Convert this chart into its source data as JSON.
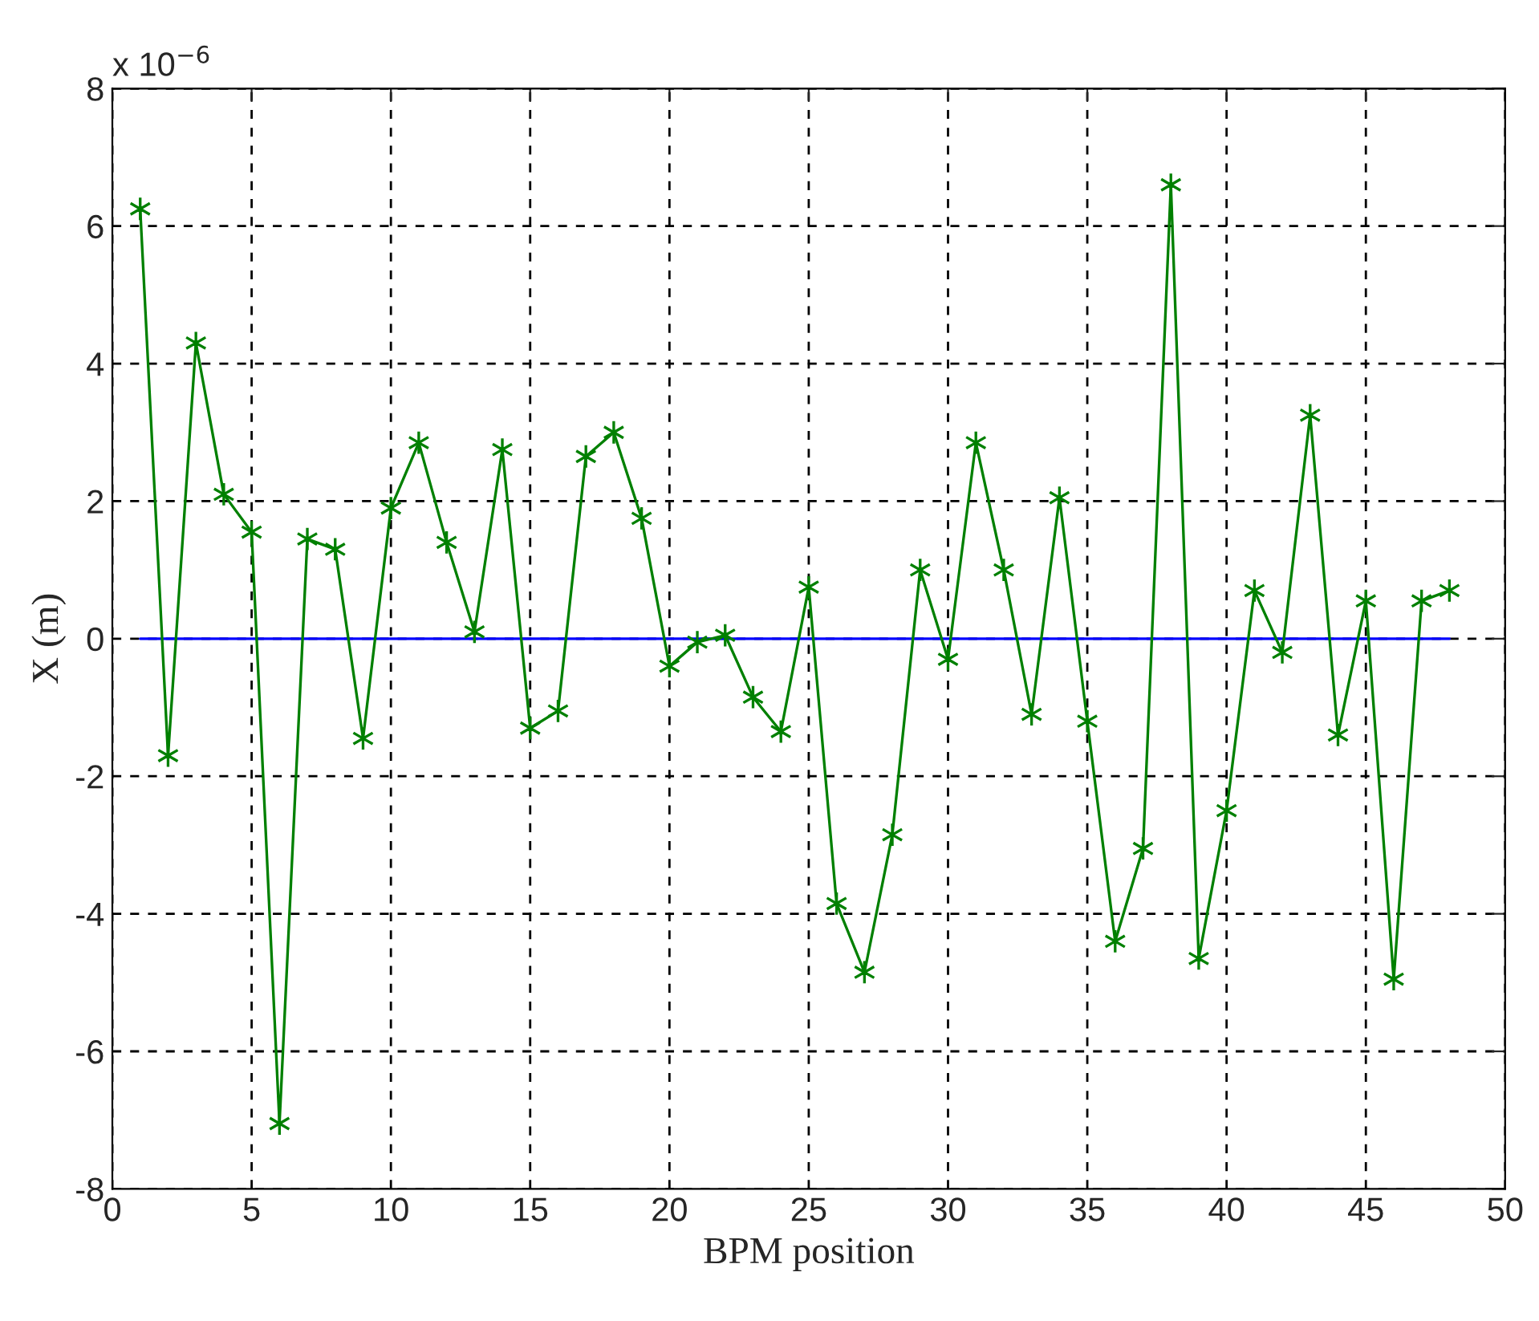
{
  "chart_data": {
    "type": "line",
    "xlabel": "BPM position",
    "ylabel": "X (m)",
    "annotations": [
      "x 10$^{−6}$"
    ],
    "x": [
      1,
      2,
      3,
      4,
      5,
      6,
      7,
      8,
      9,
      10,
      11,
      12,
      13,
      14,
      15,
      16,
      17,
      18,
      19,
      20,
      21,
      22,
      23,
      24,
      25,
      26,
      27,
      28,
      29,
      30,
      31,
      32,
      33,
      34,
      35,
      36,
      37,
      38,
      39,
      40,
      41,
      42,
      43,
      44,
      45,
      46,
      47,
      48
    ],
    "series": [
      {
        "color": "#0000ff",
        "marker": "none",
        "values": [
          0,
          0,
          0,
          0,
          0,
          0,
          0,
          0,
          0,
          0,
          0,
          0,
          0,
          0,
          0,
          0,
          0,
          0,
          0,
          0,
          0,
          0,
          0,
          0,
          0,
          0,
          0,
          0,
          0,
          0,
          0,
          0,
          0,
          0,
          0,
          0,
          0,
          0,
          0,
          0,
          0,
          0,
          0,
          0,
          0,
          0,
          0,
          0
        ]
      },
      {
        "color": "#008000",
        "marker": "cross",
        "values": [
          6.25,
          -1.7,
          4.3,
          2.1,
          1.55,
          -7.05,
          1.45,
          1.3,
          -1.45,
          1.9,
          2.85,
          1.4,
          0.1,
          2.75,
          -1.3,
          -1.05,
          2.65,
          3.0,
          1.75,
          -0.4,
          -0.05,
          0.05,
          -0.85,
          -1.35,
          0.75,
          -3.85,
          -4.85,
          -2.85,
          1.0,
          -0.3,
          2.85,
          1.0,
          -1.1,
          2.05,
          -1.2,
          -4.4,
          -3.05,
          6.6,
          -4.65,
          -2.5,
          0.7,
          -0.2,
          3.25,
          -1.4,
          0.55,
          -4.95,
          0.55,
          0.7
        ]
      }
    ],
    "xlim": [
      0,
      50
    ],
    "xticks": [
      0,
      5,
      10,
      15,
      20,
      25,
      30,
      35,
      40,
      45,
      50
    ],
    "ylim": [
      -8,
      8
    ],
    "yticks": [
      -8,
      -6,
      -4,
      -2,
      0,
      2,
      4,
      6,
      8
    ],
    "grid": true,
    "legend": false
  }
}
